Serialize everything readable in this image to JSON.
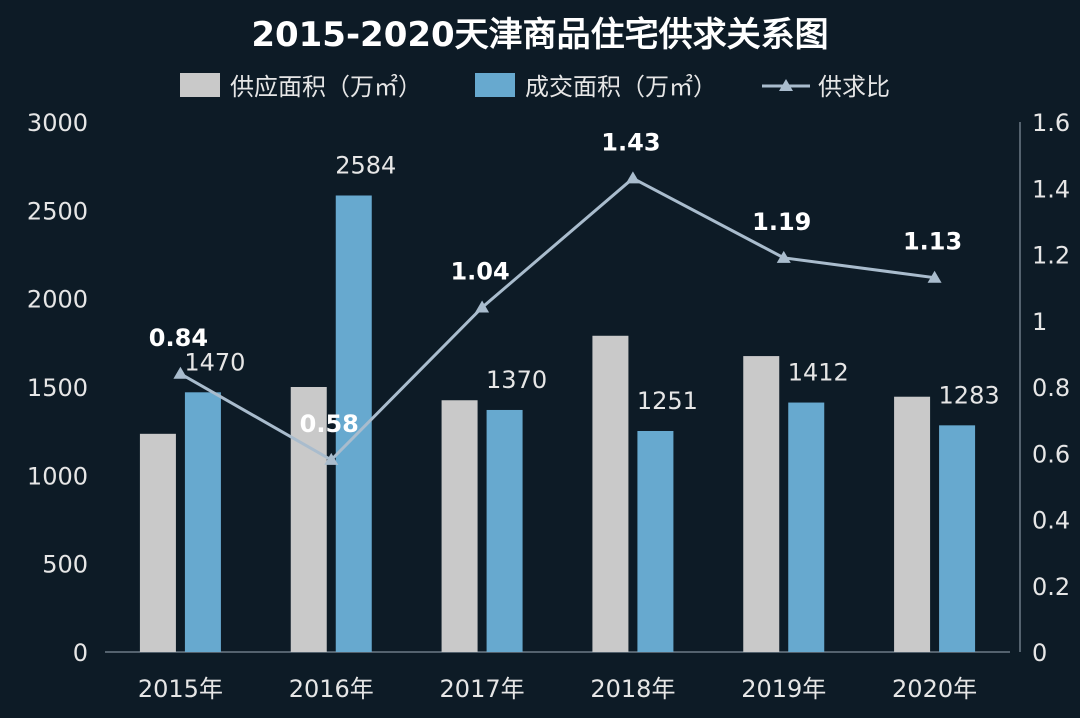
{
  "chart_data": {
    "type": "bar",
    "title": "2015-2020天津商品住宅供求关系图",
    "categories": [
      "2015年",
      "2016年",
      "2017年",
      "2018年",
      "2019年",
      "2020年"
    ],
    "series": [
      {
        "name": "供应面积（万㎡）",
        "type": "bar",
        "axis": "left",
        "color": "#c9c9c9",
        "values": [
          1235,
          1500,
          1425,
          1790,
          1675,
          1445
        ]
      },
      {
        "name": "成交面积（万㎡）",
        "type": "bar",
        "axis": "left",
        "color": "#67a9cf",
        "values": [
          1470,
          2584,
          1370,
          1251,
          1412,
          1283
        ],
        "data_labels": [
          "1470",
          "2584",
          "1370",
          "1251",
          "1412",
          "1283"
        ]
      },
      {
        "name": "供求比",
        "type": "line",
        "axis": "right",
        "color": "#a9bccd",
        "marker": "triangle",
        "values": [
          0.84,
          0.58,
          1.04,
          1.43,
          1.19,
          1.13
        ],
        "data_labels": [
          "0.84",
          "0.58",
          "1.04",
          "1.43",
          "1.19",
          "1.13"
        ]
      }
    ],
    "y_left": {
      "range": [
        0,
        3000
      ],
      "ticks": [
        "0",
        "500",
        "1000",
        "1500",
        "2000",
        "2500",
        "3000"
      ]
    },
    "y_right": {
      "range": [
        0,
        1.6
      ],
      "ticks": [
        "0",
        "0.2",
        "0.4",
        "0.6",
        "0.8",
        "1",
        "1.2",
        "1.4",
        "1.6"
      ]
    },
    "grid": false,
    "legend_position": "top"
  }
}
